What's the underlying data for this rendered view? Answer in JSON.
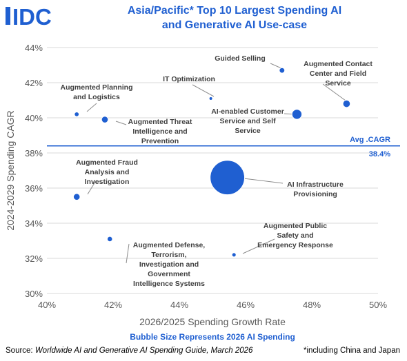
{
  "header": {
    "logo_text": "IDC",
    "title_line1": "Asia/Pacific* Top 10 Largest Spending AI",
    "title_line2": "and Generative AI Use-case"
  },
  "footer": {
    "source_prefix": "Source: ",
    "source_title": "Worldwide AI and Generative AI Spending Guide, March 2026",
    "note": "*including China and Japan"
  },
  "colors": {
    "bubble": "#1f5fd1",
    "title": "#1f5fd1",
    "axis_text": "#595959",
    "label_text": "#404040",
    "gridline": "#d9d9d9",
    "leader": "#8c8c8c"
  },
  "chart_data": {
    "type": "scatter",
    "variant": "bubble",
    "xlabel": "2026/2025 Spending Growth Rate",
    "ylabel": "2024-2029 Spending CAGR",
    "size_label": "Bubble Size Represents 2026 AI Spending",
    "xlim": [
      40,
      50
    ],
    "ylim": [
      30,
      44
    ],
    "x_ticks": [
      40,
      42,
      44,
      46,
      48,
      50
    ],
    "y_ticks": [
      30,
      32,
      34,
      36,
      38,
      40,
      42,
      44
    ],
    "x_tick_labels": [
      "40%",
      "42%",
      "44%",
      "46%",
      "48%",
      "50%"
    ],
    "y_tick_labels": [
      "30%",
      "32%",
      "34%",
      "36%",
      "38%",
      "40%",
      "42%",
      "44%"
    ],
    "grid": {
      "x": false,
      "y": true
    },
    "reference_line": {
      "name": "Avg .CAGR",
      "value": 38.4,
      "label": "38.4%"
    },
    "points": [
      {
        "label": [
          "Guided Selling"
        ],
        "x": 47.1,
        "y": 42.7,
        "size": 0.3
      },
      {
        "label": [
          "Augmented Contact",
          "Center and Field",
          "Service"
        ],
        "x": 49.05,
        "y": 40.8,
        "size": 0.55
      },
      {
        "label": [
          "IT Optimization"
        ],
        "x": 44.95,
        "y": 41.1,
        "size": 0.12
      },
      {
        "label": [
          "Augmented Planning",
          "and Logistics"
        ],
        "x": 40.9,
        "y": 40.2,
        "size": 0.22
      },
      {
        "label": [
          "Augmented Threat",
          "Intelligence and",
          "Prevention"
        ],
        "x": 41.75,
        "y": 39.9,
        "size": 0.45
      },
      {
        "label": [
          "AI-enabled Customer",
          "Service and Self",
          "Service"
        ],
        "x": 47.55,
        "y": 40.2,
        "size": 1.0
      },
      {
        "label": [
          "Augmented Fraud",
          "Analysis and",
          "Investigation"
        ],
        "x": 40.9,
        "y": 35.5,
        "size": 0.45
      },
      {
        "label": [
          "AI Infrastructure",
          "Provisioning"
        ],
        "x": 45.45,
        "y": 36.6,
        "size": 12.0
      },
      {
        "label": [
          "Augmented Defense,",
          "Terrorism,",
          "Investigation and",
          "Government",
          "Intelligence Systems"
        ],
        "x": 41.9,
        "y": 33.1,
        "size": 0.28
      },
      {
        "label": [
          "Augmented Public",
          "Safety and",
          "Emergency Response"
        ],
        "x": 45.65,
        "y": 32.2,
        "size": 0.18
      }
    ]
  }
}
